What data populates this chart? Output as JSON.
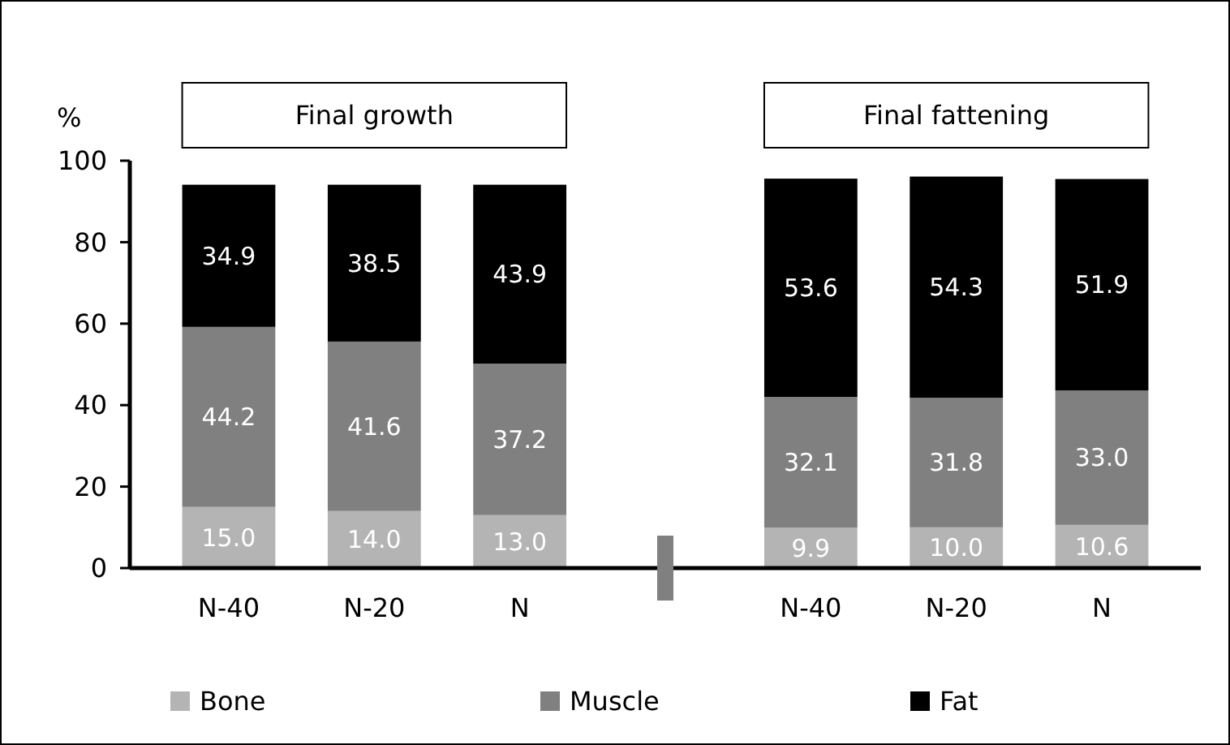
{
  "chart_data": {
    "type": "bar",
    "stacked": true,
    "ylabel": "%",
    "annotations": [
      "Final growth",
      "Final fattening"
    ],
    "categories": [
      "N-40",
      "N-20",
      "N",
      null,
      "N-40",
      "N-20",
      "N"
    ],
    "series": [
      {
        "name": "Bone",
        "color": "#b4b4b4",
        "values": [
          15.0,
          14.0,
          13.0,
          null,
          9.9,
          10.0,
          10.6
        ],
        "value_labels": [
          "15.0",
          "14.0",
          "13.0",
          null,
          "9.9",
          "10.0",
          "10.6"
        ]
      },
      {
        "name": "Muscle",
        "color": "#808080",
        "values": [
          44.2,
          41.6,
          37.2,
          null,
          32.1,
          31.8,
          33.0
        ],
        "value_labels": [
          "44.2",
          "41.6",
          "37.2",
          null,
          "32.1",
          "31.8",
          "33.0"
        ]
      },
      {
        "name": "Fat",
        "color": "#000000",
        "values": [
          34.9,
          38.5,
          43.9,
          null,
          53.6,
          54.3,
          51.9
        ],
        "value_labels": [
          "34.9",
          "38.5",
          "43.9",
          null,
          "53.6",
          "54.3",
          "51.9"
        ]
      }
    ],
    "ylim": [
      0,
      100
    ],
    "yticks": [
      0,
      20,
      40,
      60,
      80,
      100
    ],
    "legend": "bottom",
    "grid": false
  }
}
